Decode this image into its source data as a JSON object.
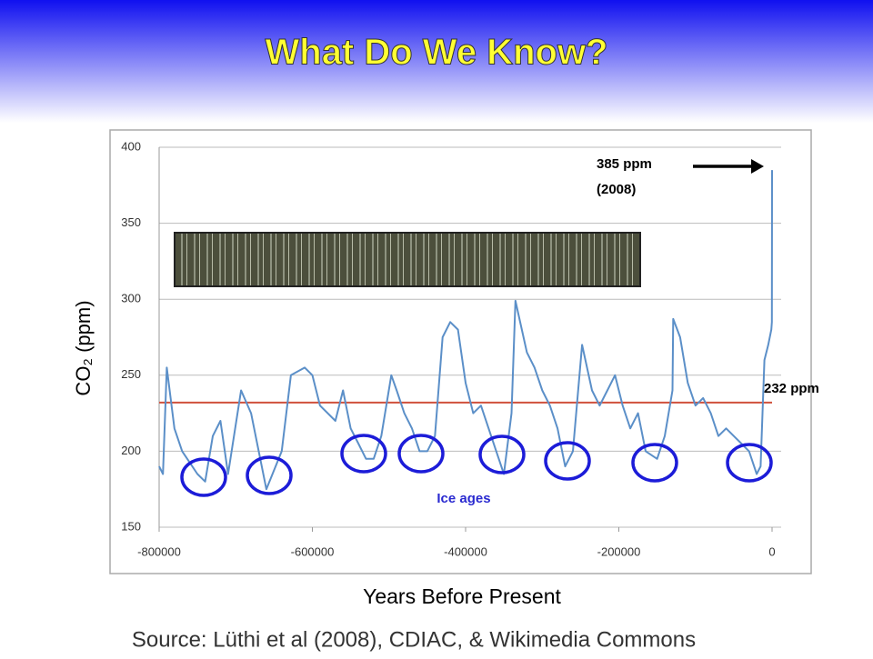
{
  "chart_data": {
    "type": "line",
    "title": "What Do We Know?",
    "x_label": "Years Before Present",
    "y_label": "CO₂ (ppm)",
    "source": "Source: Lüthi et al (2008), CDIAC, & Wikimedia Commons",
    "x": [
      -800000,
      -795000,
      -790000,
      -780000,
      -770000,
      -750000,
      -740000,
      -730000,
      -720000,
      -710000,
      -693000,
      -680000,
      -670000,
      -660000,
      -640000,
      -628000,
      -610000,
      -600000,
      -590000,
      -570000,
      -560000,
      -550000,
      -540000,
      -530000,
      -520000,
      -510000,
      -497000,
      -490000,
      -480000,
      -470000,
      -460000,
      -450000,
      -440000,
      -430000,
      -420000,
      -410000,
      -400000,
      -390000,
      -380000,
      -370000,
      -360000,
      -350000,
      -340000,
      -335000,
      -320000,
      -310000,
      -300000,
      -290000,
      -280000,
      -270000,
      -260000,
      -248000,
      -235000,
      -225000,
      -215000,
      -205000,
      -195000,
      -185000,
      -175000,
      -165000,
      -150000,
      -140000,
      -130000,
      -129000,
      -120000,
      -110000,
      -100000,
      -90000,
      -80000,
      -70000,
      -60000,
      -50000,
      -40000,
      -30000,
      -20000,
      -15000,
      -10000,
      -5000,
      -1000,
      -200,
      0
    ],
    "values": [
      190,
      185,
      255,
      215,
      200,
      185,
      180,
      210,
      220,
      185,
      240,
      225,
      200,
      175,
      200,
      250,
      255,
      250,
      230,
      220,
      240,
      215,
      205,
      195,
      195,
      210,
      250,
      240,
      225,
      215,
      200,
      200,
      210,
      275,
      285,
      280,
      245,
      225,
      230,
      215,
      200,
      185,
      225,
      299,
      265,
      255,
      240,
      230,
      215,
      190,
      200,
      270,
      240,
      230,
      240,
      250,
      230,
      215,
      225,
      200,
      195,
      210,
      240,
      287,
      275,
      245,
      230,
      235,
      225,
      210,
      215,
      210,
      205,
      200,
      185,
      190,
      260,
      270,
      280,
      285,
      385
    ],
    "color": "#5b8fc8",
    "xlim": [
      -800000,
      0
    ],
    "xticks": [
      -800000,
      -600000,
      -400000,
      -200000,
      0
    ],
    "ylim": [
      150,
      400
    ],
    "yticks": [
      150,
      200,
      250,
      300,
      350,
      400
    ],
    "grid": true,
    "reference_line": {
      "value": 232,
      "label": "232 ppm",
      "color": "#d0503c"
    },
    "annotations": [
      "385 ppm",
      "(2008)",
      "Ice ages"
    ]
  }
}
